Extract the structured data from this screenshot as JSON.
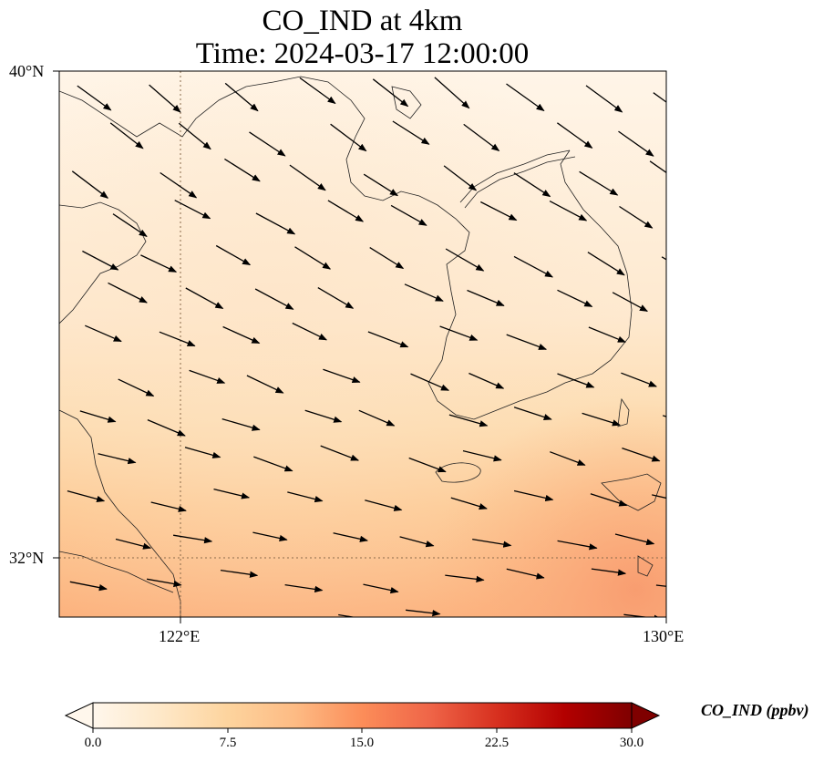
{
  "title": {
    "line1": "CO_IND at 4km",
    "line2": "Time: 2024-03-17 12:00:00"
  },
  "axes": {
    "lat_ticks": [
      "40°N",
      "32°N"
    ],
    "lon_ticks": [
      "122°E",
      "130°E"
    ]
  },
  "colorbar": {
    "label": "CO_IND (ppbv)",
    "ticks": [
      "0.0",
      "7.5",
      "15.0",
      "22.5",
      "30.0"
    ],
    "range": [
      0,
      30
    ],
    "colormap": "OrRd",
    "colors": [
      "#fff7ec",
      "#fee8c8",
      "#fdd49e",
      "#fdbb84",
      "#fc8d59",
      "#ef6548",
      "#d7301f",
      "#b30000",
      "#7f0000"
    ],
    "extend": "both"
  },
  "map_data": {
    "lon_range": [
      120,
      130
    ],
    "lat_range": [
      31,
      40
    ],
    "gridlines": {
      "lon": [
        122,
        130
      ],
      "lat": [
        32,
        40
      ],
      "style": "dotted"
    },
    "wind_vectors": "uniform field of arrows directed east-southeast",
    "concentration": "near 0–3 ppbv in the north, increasing to about 10–13 ppbv in the south and southeast corner"
  }
}
